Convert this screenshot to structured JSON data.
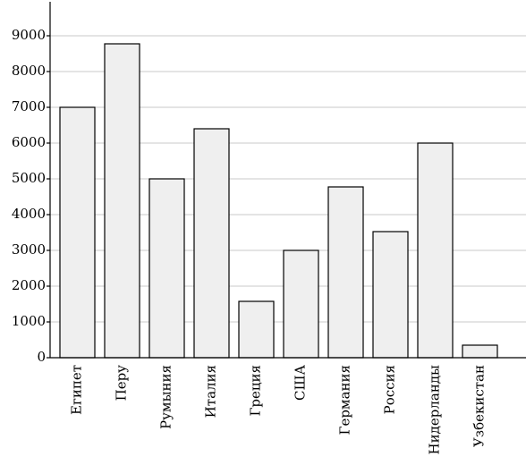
{
  "chart_data": {
    "type": "bar",
    "categories": [
      "Египет",
      "Перу",
      "Румыния",
      "Италия",
      "Греция",
      "США",
      "Германия",
      "Россия",
      "Нидерланды",
      "Узбекистан"
    ],
    "values": [
      7000,
      8775,
      5000,
      6400,
      1575,
      3000,
      4775,
      3525,
      6000,
      350
    ],
    "color": "#efefef",
    "ylim": [
      0,
      9950
    ],
    "yticks": [
      0,
      1000,
      2000,
      3000,
      4000,
      5000,
      6000,
      7000,
      8000,
      9000
    ],
    "grid": true
  }
}
